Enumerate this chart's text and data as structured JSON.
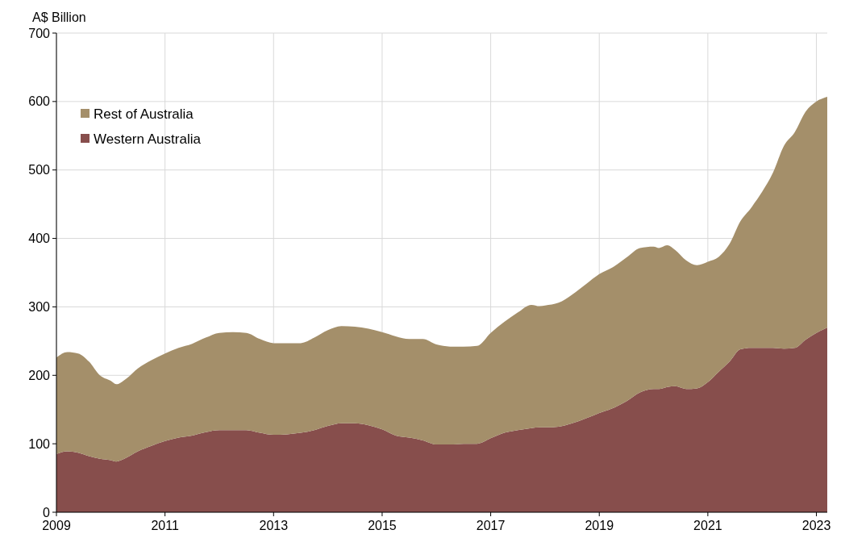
{
  "chart_data": {
    "type": "area",
    "stacked": true,
    "ylabel": "A$ Billion",
    "x": [
      2009.0,
      2009.2,
      2009.4,
      2009.6,
      2009.8,
      2010.0,
      2010.1,
      2010.3,
      2010.5,
      2010.75,
      2011.0,
      2011.25,
      2011.5,
      2011.75,
      2012.0,
      2012.25,
      2012.5,
      2012.75,
      2013.0,
      2013.5,
      2013.75,
      2014.0,
      2014.25,
      2014.5,
      2014.75,
      2015.0,
      2015.25,
      2015.5,
      2015.75,
      2016.0,
      2016.25,
      2016.5,
      2016.75,
      2017.0,
      2017.25,
      2017.5,
      2017.75,
      2017.9,
      2018.0,
      2018.25,
      2018.5,
      2018.75,
      2019.0,
      2019.25,
      2019.5,
      2019.75,
      2020.0,
      2020.1,
      2020.25,
      2020.4,
      2020.6,
      2020.8,
      2021.0,
      2021.2,
      2021.4,
      2021.6,
      2021.8,
      2022.0,
      2022.2,
      2022.4,
      2022.6,
      2022.8,
      2023.0,
      2023.2
    ],
    "series": [
      {
        "name": "Western Australia",
        "color": "#874e4c",
        "values": [
          85,
          89,
          87,
          82,
          78,
          76,
          74,
          80,
          89,
          97,
          104,
          109,
          112,
          117,
          120,
          120,
          120,
          116,
          113,
          116,
          120,
          126,
          130,
          130,
          127,
          121,
          112,
          109,
          105,
          99,
          99,
          100,
          100,
          108,
          116,
          120,
          123,
          124,
          124,
          125,
          130,
          137,
          145,
          152,
          162,
          175,
          180,
          180,
          183,
          184,
          180,
          181,
          190,
          205,
          220,
          238,
          240,
          240,
          240,
          239,
          240,
          252,
          262,
          270
        ]
      },
      {
        "name": "Rest of Australia",
        "color": "#a48f6a",
        "values": [
          141,
          145,
          145,
          138,
          122,
          116,
          113,
          116,
          121,
          125,
          128,
          131,
          134,
          138,
          142,
          143,
          142,
          137,
          134,
          131,
          135,
          140,
          142,
          141,
          141,
          142,
          145,
          144,
          148,
          146,
          143,
          142,
          143,
          154,
          162,
          172,
          180,
          177,
          178,
          181,
          188,
          196,
          203,
          206,
          210,
          211,
          208,
          206,
          207,
          199,
          188,
          180,
          176,
          168,
          172,
          187,
          205,
          228,
          256,
          296,
          315,
          333,
          338,
          337
        ]
      }
    ],
    "xlim": [
      2009,
      2023.2
    ],
    "xticks": [
      2009,
      2011,
      2013,
      2015,
      2017,
      2019,
      2021,
      2023
    ],
    "ylim": [
      0,
      700
    ],
    "yticks": [
      0,
      100,
      200,
      300,
      400,
      500,
      600,
      700
    ],
    "grid": true,
    "legend": "top left"
  }
}
